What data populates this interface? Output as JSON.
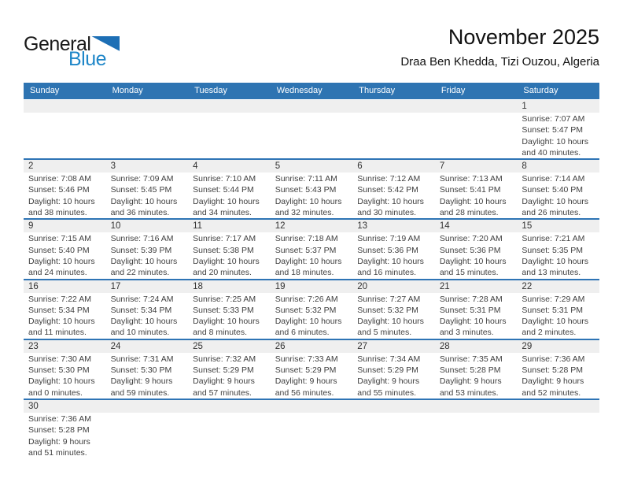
{
  "logo": {
    "text_top": "General",
    "text_bottom": "Blue"
  },
  "header": {
    "title": "November 2025",
    "subtitle": "Draa Ben Khedda, Tizi Ouzou, Algeria"
  },
  "colors": {
    "header_bg": "#2E74B2",
    "week_divider": "#2E74B5",
    "day_strip_bg": "#EFEFEF",
    "logo_text_blue": "#1E86C8",
    "logo_triangle_blue": "#1D6FB5",
    "cell_text": "#3F3F3F"
  },
  "calendar": {
    "day_headers": [
      "Sunday",
      "Monday",
      "Tuesday",
      "Wednesday",
      "Thursday",
      "Friday",
      "Saturday"
    ],
    "weeks": [
      [
        null,
        null,
        null,
        null,
        null,
        null,
        {
          "day": 1,
          "sunrise": "Sunrise: 7:07 AM",
          "sunset": "Sunset: 5:47 PM",
          "daylight": "Daylight: 10 hours and 40 minutes."
        }
      ],
      [
        {
          "day": 2,
          "sunrise": "Sunrise: 7:08 AM",
          "sunset": "Sunset: 5:46 PM",
          "daylight": "Daylight: 10 hours and 38 minutes."
        },
        {
          "day": 3,
          "sunrise": "Sunrise: 7:09 AM",
          "sunset": "Sunset: 5:45 PM",
          "daylight": "Daylight: 10 hours and 36 minutes."
        },
        {
          "day": 4,
          "sunrise": "Sunrise: 7:10 AM",
          "sunset": "Sunset: 5:44 PM",
          "daylight": "Daylight: 10 hours and 34 minutes."
        },
        {
          "day": 5,
          "sunrise": "Sunrise: 7:11 AM",
          "sunset": "Sunset: 5:43 PM",
          "daylight": "Daylight: 10 hours and 32 minutes."
        },
        {
          "day": 6,
          "sunrise": "Sunrise: 7:12 AM",
          "sunset": "Sunset: 5:42 PM",
          "daylight": "Daylight: 10 hours and 30 minutes."
        },
        {
          "day": 7,
          "sunrise": "Sunrise: 7:13 AM",
          "sunset": "Sunset: 5:41 PM",
          "daylight": "Daylight: 10 hours and 28 minutes."
        },
        {
          "day": 8,
          "sunrise": "Sunrise: 7:14 AM",
          "sunset": "Sunset: 5:40 PM",
          "daylight": "Daylight: 10 hours and 26 minutes."
        }
      ],
      [
        {
          "day": 9,
          "sunrise": "Sunrise: 7:15 AM",
          "sunset": "Sunset: 5:40 PM",
          "daylight": "Daylight: 10 hours and 24 minutes."
        },
        {
          "day": 10,
          "sunrise": "Sunrise: 7:16 AM",
          "sunset": "Sunset: 5:39 PM",
          "daylight": "Daylight: 10 hours and 22 minutes."
        },
        {
          "day": 11,
          "sunrise": "Sunrise: 7:17 AM",
          "sunset": "Sunset: 5:38 PM",
          "daylight": "Daylight: 10 hours and 20 minutes."
        },
        {
          "day": 12,
          "sunrise": "Sunrise: 7:18 AM",
          "sunset": "Sunset: 5:37 PM",
          "daylight": "Daylight: 10 hours and 18 minutes."
        },
        {
          "day": 13,
          "sunrise": "Sunrise: 7:19 AM",
          "sunset": "Sunset: 5:36 PM",
          "daylight": "Daylight: 10 hours and 16 minutes."
        },
        {
          "day": 14,
          "sunrise": "Sunrise: 7:20 AM",
          "sunset": "Sunset: 5:36 PM",
          "daylight": "Daylight: 10 hours and 15 minutes."
        },
        {
          "day": 15,
          "sunrise": "Sunrise: 7:21 AM",
          "sunset": "Sunset: 5:35 PM",
          "daylight": "Daylight: 10 hours and 13 minutes."
        }
      ],
      [
        {
          "day": 16,
          "sunrise": "Sunrise: 7:22 AM",
          "sunset": "Sunset: 5:34 PM",
          "daylight": "Daylight: 10 hours and 11 minutes."
        },
        {
          "day": 17,
          "sunrise": "Sunrise: 7:24 AM",
          "sunset": "Sunset: 5:34 PM",
          "daylight": "Daylight: 10 hours and 10 minutes."
        },
        {
          "day": 18,
          "sunrise": "Sunrise: 7:25 AM",
          "sunset": "Sunset: 5:33 PM",
          "daylight": "Daylight: 10 hours and 8 minutes."
        },
        {
          "day": 19,
          "sunrise": "Sunrise: 7:26 AM",
          "sunset": "Sunset: 5:32 PM",
          "daylight": "Daylight: 10 hours and 6 minutes."
        },
        {
          "day": 20,
          "sunrise": "Sunrise: 7:27 AM",
          "sunset": "Sunset: 5:32 PM",
          "daylight": "Daylight: 10 hours and 5 minutes."
        },
        {
          "day": 21,
          "sunrise": "Sunrise: 7:28 AM",
          "sunset": "Sunset: 5:31 PM",
          "daylight": "Daylight: 10 hours and 3 minutes."
        },
        {
          "day": 22,
          "sunrise": "Sunrise: 7:29 AM",
          "sunset": "Sunset: 5:31 PM",
          "daylight": "Daylight: 10 hours and 2 minutes."
        }
      ],
      [
        {
          "day": 23,
          "sunrise": "Sunrise: 7:30 AM",
          "sunset": "Sunset: 5:30 PM",
          "daylight": "Daylight: 10 hours and 0 minutes."
        },
        {
          "day": 24,
          "sunrise": "Sunrise: 7:31 AM",
          "sunset": "Sunset: 5:30 PM",
          "daylight": "Daylight: 9 hours and 59 minutes."
        },
        {
          "day": 25,
          "sunrise": "Sunrise: 7:32 AM",
          "sunset": "Sunset: 5:29 PM",
          "daylight": "Daylight: 9 hours and 57 minutes."
        },
        {
          "day": 26,
          "sunrise": "Sunrise: 7:33 AM",
          "sunset": "Sunset: 5:29 PM",
          "daylight": "Daylight: 9 hours and 56 minutes."
        },
        {
          "day": 27,
          "sunrise": "Sunrise: 7:34 AM",
          "sunset": "Sunset: 5:29 PM",
          "daylight": "Daylight: 9 hours and 55 minutes."
        },
        {
          "day": 28,
          "sunrise": "Sunrise: 7:35 AM",
          "sunset": "Sunset: 5:28 PM",
          "daylight": "Daylight: 9 hours and 53 minutes."
        },
        {
          "day": 29,
          "sunrise": "Sunrise: 7:36 AM",
          "sunset": "Sunset: 5:28 PM",
          "daylight": "Daylight: 9 hours and 52 minutes."
        }
      ],
      [
        {
          "day": 30,
          "sunrise": "Sunrise: 7:36 AM",
          "sunset": "Sunset: 5:28 PM",
          "daylight": "Daylight: 9 hours and 51 minutes."
        },
        null,
        null,
        null,
        null,
        null,
        null
      ]
    ]
  }
}
